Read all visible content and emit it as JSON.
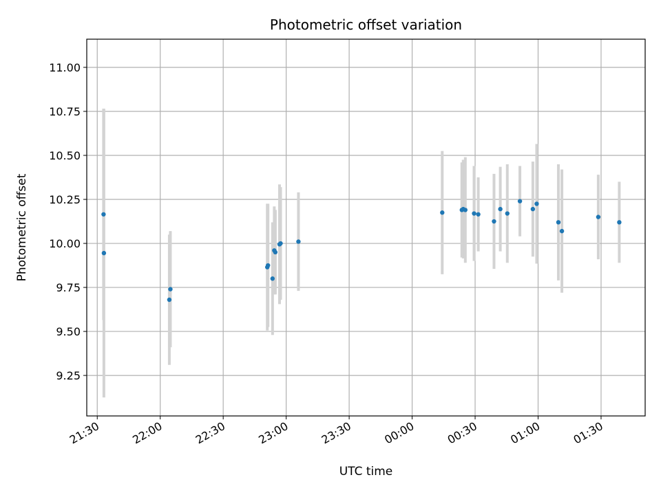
{
  "chart_data": {
    "type": "scatter",
    "title": "Photometric offset variation",
    "xlabel": "UTC time",
    "ylabel": "Photometric offset",
    "x_axis_kind": "datetime",
    "xlim": [
      "2023-01-01T21:25:00",
      "2023-01-02T01:51:00"
    ],
    "ylim": [
      9.02,
      11.16
    ],
    "x_ticks": [
      {
        "t": "2023-01-01T21:30:00",
        "label": "21:30"
      },
      {
        "t": "2023-01-01T22:00:00",
        "label": "22:00"
      },
      {
        "t": "2023-01-01T22:30:00",
        "label": "22:30"
      },
      {
        "t": "2023-01-01T23:00:00",
        "label": "23:00"
      },
      {
        "t": "2023-01-01T23:30:00",
        "label": "23:30"
      },
      {
        "t": "2023-01-02T00:00:00",
        "label": "00:00"
      },
      {
        "t": "2023-01-02T00:30:00",
        "label": "00:30"
      },
      {
        "t": "2023-01-02T01:00:00",
        "label": "01:00"
      },
      {
        "t": "2023-01-02T01:30:00",
        "label": "01:30"
      }
    ],
    "y_ticks": [
      9.25,
      9.5,
      9.75,
      10.0,
      10.25,
      10.5,
      10.75,
      11.0
    ],
    "y_tick_labels": [
      "9.25",
      "9.50",
      "9.75",
      "10.00",
      "10.25",
      "10.50",
      "10.75",
      "11.00"
    ],
    "grid": true,
    "colors": {
      "point": "#1f77b4",
      "errorbar": "#d3d3d3",
      "grid": "#b0b0b0"
    },
    "series": [
      {
        "points": [
          {
            "t": "2023-01-01T21:33:00",
            "y": 10.165,
            "err": 0.6
          },
          {
            "t": "2023-01-01T21:33:10",
            "y": 9.945,
            "err": 0.82
          },
          {
            "t": "2023-01-01T22:04:20",
            "y": 9.68,
            "err": 0.37
          },
          {
            "t": "2023-01-01T22:04:50",
            "y": 9.74,
            "err": 0.33
          },
          {
            "t": "2023-01-01T22:51:00",
            "y": 9.865,
            "err": 0.36
          },
          {
            "t": "2023-01-01T22:51:20",
            "y": 9.875,
            "err": 0.35
          },
          {
            "t": "2023-01-01T22:53:30",
            "y": 9.8,
            "err": 0.32
          },
          {
            "t": "2023-01-01T22:54:20",
            "y": 9.96,
            "err": 0.25
          },
          {
            "t": "2023-01-01T22:54:50",
            "y": 9.95,
            "err": 0.24
          },
          {
            "t": "2023-01-01T22:56:50",
            "y": 9.995,
            "err": 0.34
          },
          {
            "t": "2023-01-01T22:57:20",
            "y": 10.0,
            "err": 0.32
          },
          {
            "t": "2023-01-01T23:05:50",
            "y": 10.01,
            "err": 0.28
          },
          {
            "t": "2023-01-02T00:14:20",
            "y": 10.175,
            "err": 0.35
          },
          {
            "t": "2023-01-02T00:23:40",
            "y": 10.19,
            "err": 0.27
          },
          {
            "t": "2023-01-02T00:24:20",
            "y": 10.195,
            "err": 0.28
          },
          {
            "t": "2023-01-02T00:25:20",
            "y": 10.19,
            "err": 0.3
          },
          {
            "t": "2023-01-02T00:29:30",
            "y": 10.17,
            "err": 0.27
          },
          {
            "t": "2023-01-02T00:31:30",
            "y": 10.165,
            "err": 0.21
          },
          {
            "t": "2023-01-02T00:39:00",
            "y": 10.125,
            "err": 0.27
          },
          {
            "t": "2023-01-02T00:42:00",
            "y": 10.195,
            "err": 0.24
          },
          {
            "t": "2023-01-02T00:45:20",
            "y": 10.17,
            "err": 0.28
          },
          {
            "t": "2023-01-02T00:51:20",
            "y": 10.24,
            "err": 0.2
          },
          {
            "t": "2023-01-02T00:57:30",
            "y": 10.195,
            "err": 0.27
          },
          {
            "t": "2023-01-02T00:59:20",
            "y": 10.225,
            "err": 0.34
          },
          {
            "t": "2023-01-02T01:09:40",
            "y": 10.12,
            "err": 0.33
          },
          {
            "t": "2023-01-02T01:11:20",
            "y": 10.07,
            "err": 0.35
          },
          {
            "t": "2023-01-02T01:28:40",
            "y": 10.15,
            "err": 0.24
          },
          {
            "t": "2023-01-02T01:38:40",
            "y": 10.12,
            "err": 0.23
          }
        ]
      }
    ]
  }
}
